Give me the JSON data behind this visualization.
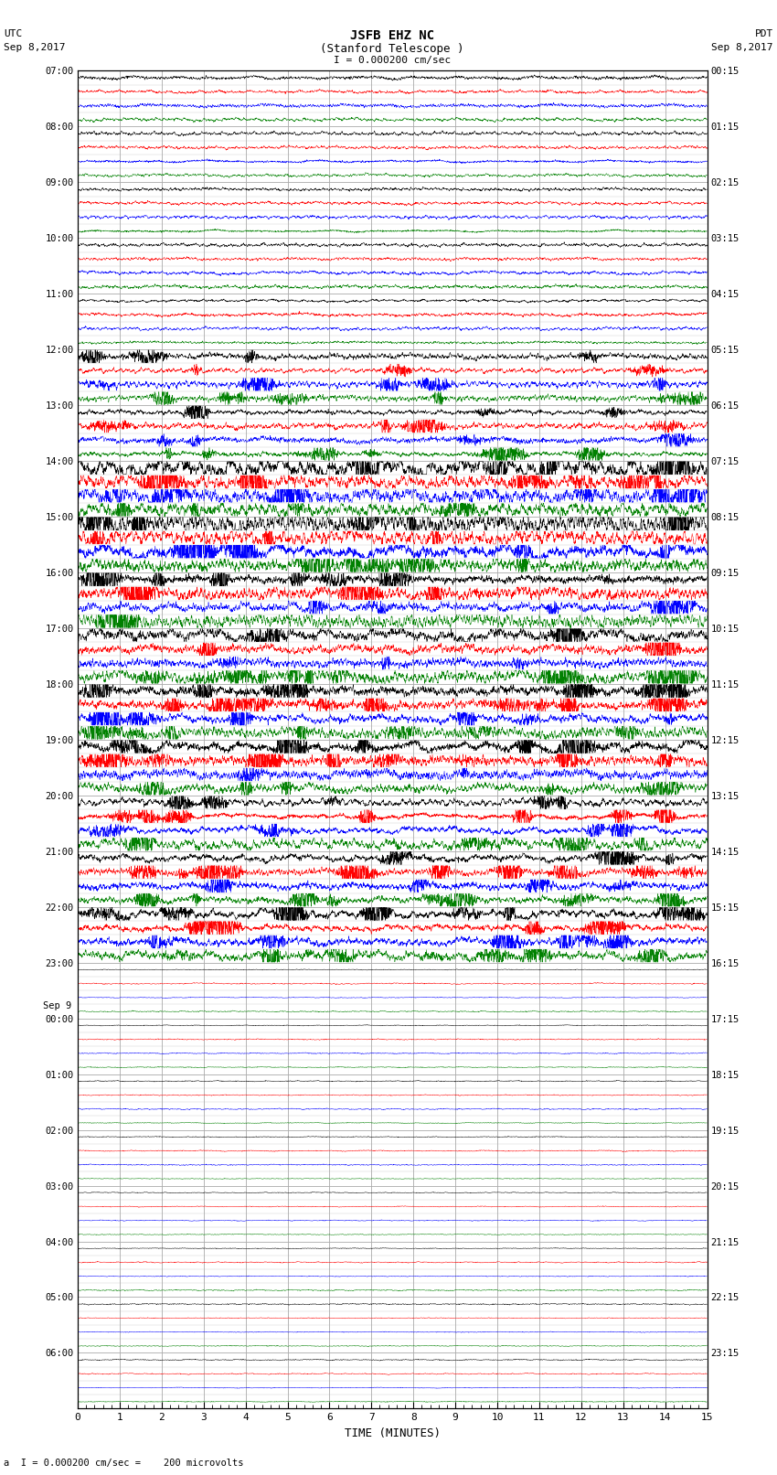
{
  "title_line1": "JSFB EHZ NC",
  "title_line2": "(Stanford Telescope )",
  "scale_label": "I = 0.000200 cm/sec",
  "footer_label": "a  I = 0.000200 cm/sec =    200 microvolts",
  "utc_label": "UTC",
  "utc_date": "Sep 8,2017",
  "pdt_label": "PDT",
  "pdt_date": "Sep 8,2017",
  "xlabel": "TIME (MINUTES)",
  "left_times": [
    "07:00",
    "08:00",
    "09:00",
    "10:00",
    "11:00",
    "12:00",
    "13:00",
    "14:00",
    "15:00",
    "16:00",
    "17:00",
    "18:00",
    "19:00",
    "20:00",
    "21:00",
    "22:00",
    "23:00",
    "00:00",
    "01:00",
    "02:00",
    "03:00",
    "04:00",
    "05:00",
    "06:00"
  ],
  "right_times": [
    "00:15",
    "01:15",
    "02:15",
    "03:15",
    "04:15",
    "05:15",
    "06:15",
    "07:15",
    "08:15",
    "09:15",
    "10:15",
    "11:15",
    "12:15",
    "13:15",
    "14:15",
    "15:15",
    "16:15",
    "17:15",
    "18:15",
    "19:15",
    "20:15",
    "21:15",
    "22:15",
    "23:15"
  ],
  "sep9_row": 17,
  "colors": [
    "black",
    "red",
    "blue",
    "green"
  ],
  "num_rows": 24,
  "traces_per_row": 4,
  "xmin": 0,
  "xmax": 15,
  "bg_color": "#ffffff",
  "grid_color": "#aaaaaa",
  "subgrid_color": "#cccccc",
  "active_until_row": 16,
  "seed": 12345
}
